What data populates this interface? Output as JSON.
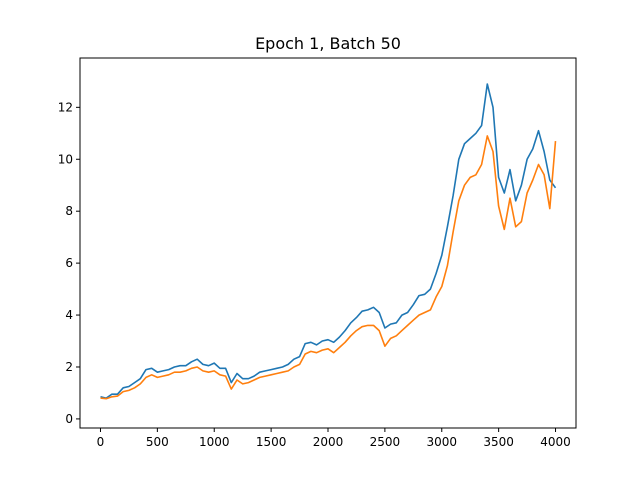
{
  "chart_data": {
    "type": "line",
    "title": "Epoch 1, Batch 50",
    "xlabel": "",
    "ylabel": "",
    "xlim": [
      -180,
      4180
    ],
    "ylim": [
      -0.35,
      13.9
    ],
    "xticks": [
      0,
      500,
      1000,
      1500,
      2000,
      2500,
      3000,
      3500,
      4000
    ],
    "yticks": [
      0,
      2,
      4,
      6,
      8,
      10,
      12
    ],
    "grid": false,
    "legend": "none",
    "series": [
      {
        "color": "#1f77b4",
        "x": [
          0,
          50,
          100,
          150,
          200,
          250,
          300,
          350,
          400,
          450,
          500,
          550,
          600,
          650,
          700,
          750,
          800,
          850,
          900,
          950,
          1000,
          1050,
          1100,
          1150,
          1200,
          1250,
          1300,
          1350,
          1400,
          1450,
          1500,
          1550,
          1600,
          1650,
          1700,
          1750,
          1800,
          1850,
          1900,
          1950,
          2000,
          2050,
          2100,
          2150,
          2200,
          2250,
          2300,
          2350,
          2400,
          2450,
          2500,
          2550,
          2600,
          2650,
          2700,
          2750,
          2800,
          2850,
          2900,
          2950,
          3000,
          3050,
          3100,
          3150,
          3200,
          3250,
          3300,
          3350,
          3400,
          3450,
          3500,
          3550,
          3600,
          3650,
          3700,
          3750,
          3800,
          3850,
          3900,
          3950,
          4000
        ],
        "values": [
          0.85,
          0.8,
          0.95,
          0.95,
          1.2,
          1.25,
          1.4,
          1.55,
          1.9,
          1.95,
          1.8,
          1.85,
          1.9,
          2.0,
          2.05,
          2.05,
          2.2,
          2.3,
          2.1,
          2.05,
          2.15,
          1.95,
          1.95,
          1.4,
          1.75,
          1.55,
          1.55,
          1.65,
          1.8,
          1.85,
          1.9,
          1.95,
          2.0,
          2.1,
          2.3,
          2.4,
          2.9,
          2.95,
          2.85,
          3.0,
          3.05,
          2.95,
          3.15,
          3.4,
          3.7,
          3.9,
          4.15,
          4.2,
          4.3,
          4.1,
          3.5,
          3.65,
          3.7,
          4.0,
          4.1,
          4.4,
          4.75,
          4.8,
          5.0,
          5.6,
          6.3,
          7.4,
          8.6,
          10.0,
          10.6,
          10.8,
          11.0,
          11.3,
          12.9,
          12.0,
          9.3,
          8.7,
          9.6,
          8.4,
          9.0,
          10.0,
          10.4,
          11.1,
          10.3,
          9.2,
          8.9
        ]
      },
      {
        "color": "#ff7f0e",
        "x": [
          0,
          50,
          100,
          150,
          200,
          250,
          300,
          350,
          400,
          450,
          500,
          550,
          600,
          650,
          700,
          750,
          800,
          850,
          900,
          950,
          1000,
          1050,
          1100,
          1150,
          1200,
          1250,
          1300,
          1350,
          1400,
          1450,
          1500,
          1550,
          1600,
          1650,
          1700,
          1750,
          1800,
          1850,
          1900,
          1950,
          2000,
          2050,
          2100,
          2150,
          2200,
          2250,
          2300,
          2350,
          2400,
          2450,
          2500,
          2550,
          2600,
          2650,
          2700,
          2750,
          2800,
          2850,
          2900,
          2950,
          3000,
          3050,
          3100,
          3150,
          3200,
          3250,
          3300,
          3350,
          3400,
          3450,
          3500,
          3550,
          3600,
          3650,
          3700,
          3750,
          3800,
          3850,
          3900,
          3950,
          4000
        ],
        "values": [
          0.8,
          0.78,
          0.85,
          0.88,
          1.05,
          1.1,
          1.2,
          1.35,
          1.6,
          1.7,
          1.6,
          1.65,
          1.7,
          1.8,
          1.8,
          1.85,
          1.95,
          2.0,
          1.85,
          1.8,
          1.85,
          1.7,
          1.65,
          1.15,
          1.5,
          1.35,
          1.4,
          1.5,
          1.6,
          1.65,
          1.7,
          1.75,
          1.8,
          1.85,
          2.0,
          2.1,
          2.5,
          2.6,
          2.55,
          2.65,
          2.7,
          2.55,
          2.75,
          2.95,
          3.2,
          3.4,
          3.55,
          3.6,
          3.6,
          3.4,
          2.8,
          3.1,
          3.2,
          3.4,
          3.6,
          3.8,
          4.0,
          4.1,
          4.2,
          4.7,
          5.1,
          5.9,
          7.2,
          8.4,
          9.0,
          9.3,
          9.4,
          9.8,
          10.9,
          10.3,
          8.2,
          7.3,
          8.5,
          7.4,
          7.6,
          8.7,
          9.2,
          9.8,
          9.4,
          8.1,
          10.7
        ]
      }
    ]
  }
}
